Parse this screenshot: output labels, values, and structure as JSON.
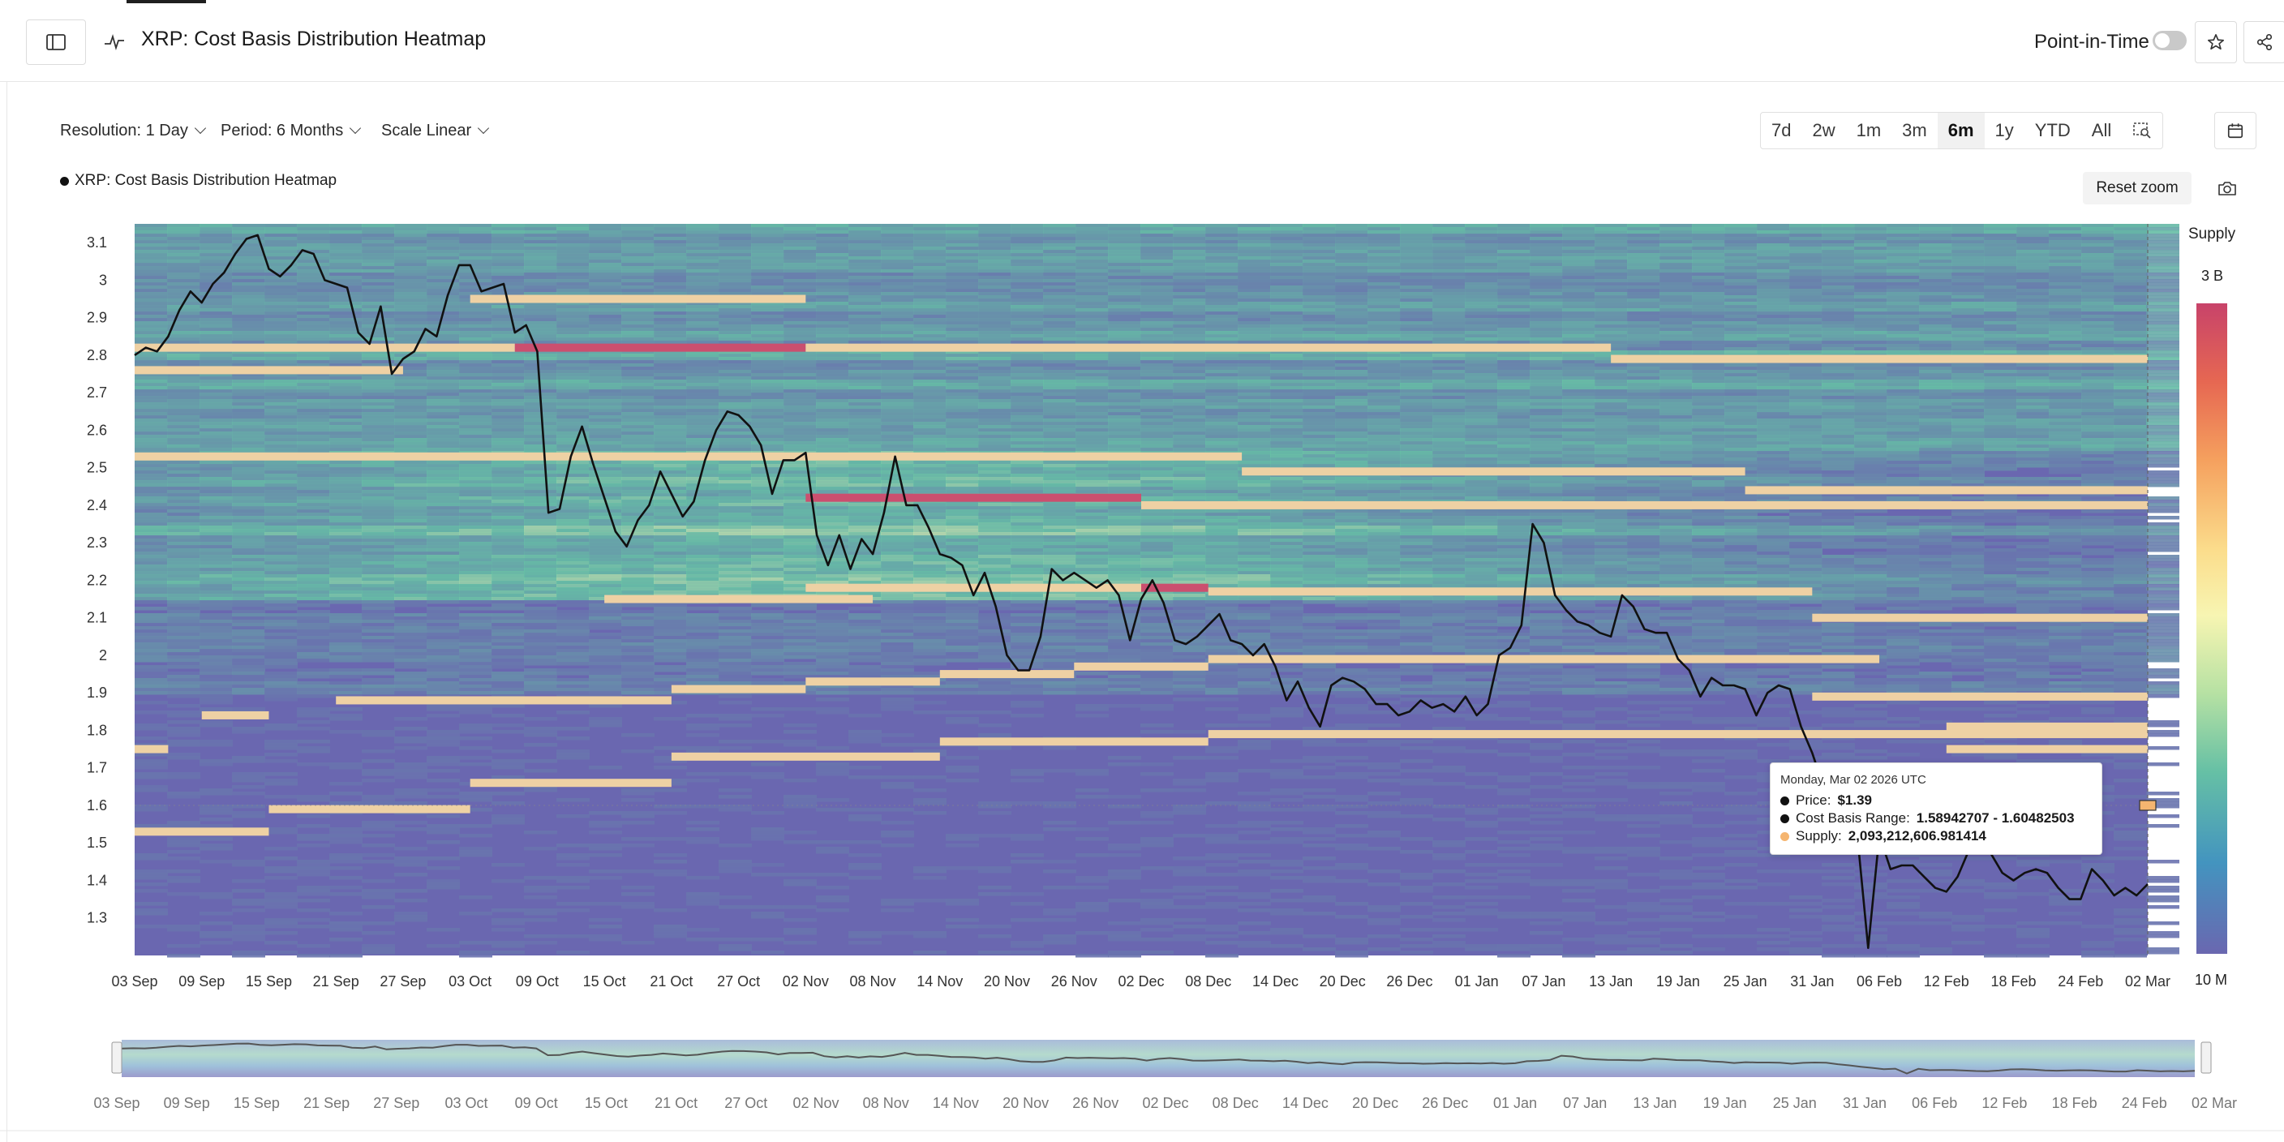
{
  "header": {
    "title": "XRP: Cost Basis Distribution Heatmap",
    "point_in_time_label": "Point-in-Time"
  },
  "controls": {
    "resolution": "Resolution: 1 Day",
    "period": "Period: 6 Months",
    "scale": "Scale Linear",
    "ranges": [
      "7d",
      "2w",
      "1m",
      "3m",
      "6m",
      "1y",
      "YTD",
      "All"
    ],
    "active_range": "6m",
    "reset_zoom": "Reset zoom"
  },
  "legend": {
    "series_name": "XRP: Cost Basis Distribution Heatmap"
  },
  "colorbar": {
    "title": "Supply",
    "max_label": "3 B",
    "min_label": "10 M"
  },
  "tooltip": {
    "date": "Monday, Mar 02 2026 UTC",
    "price_label": "Price:",
    "price_value": "$1.39",
    "range_label": "Cost Basis Range:",
    "range_value": "1.58942707 - 1.60482503",
    "supply_label": "Supply:",
    "supply_value": "2,093,212,606.981414"
  },
  "colors": {
    "heat_low": "#6a67b0",
    "heat_mid": "#66c0a5",
    "heat_high": "#f7f5b2",
    "heat_peak": "#c8436a",
    "price_line": "#111111",
    "supply_dot": "#f5b570"
  },
  "chart_data": {
    "type": "heatmap",
    "title": "XRP: Cost Basis Distribution Heatmap",
    "y_ticks": [
      3.1,
      3,
      2.9,
      2.8,
      2.7,
      2.6,
      2.5,
      2.4,
      2.3,
      2.2,
      2.1,
      2,
      1.9,
      1.8,
      1.7,
      1.6,
      1.5,
      1.4,
      1.3
    ],
    "ylim": [
      1.2,
      3.15
    ],
    "x_start": "2025-09-03",
    "x_end": "2026-03-02",
    "x_tick_labels": [
      "03 Sep",
      "09 Sep",
      "15 Sep",
      "21 Sep",
      "27 Sep",
      "03 Oct",
      "09 Oct",
      "15 Oct",
      "21 Oct",
      "27 Oct",
      "02 Nov",
      "08 Nov",
      "14 Nov",
      "20 Nov",
      "26 Nov",
      "02 Dec",
      "08 Dec",
      "14 Dec",
      "20 Dec",
      "26 Dec",
      "01 Jan",
      "07 Jan",
      "13 Jan",
      "19 Jan",
      "25 Jan",
      "31 Jan",
      "06 Feb",
      "12 Feb",
      "18 Feb",
      "24 Feb",
      "02 Mar"
    ],
    "price_series": [
      [
        "2025-09-03",
        2.8
      ],
      [
        "2025-09-04",
        2.82
      ],
      [
        "2025-09-05",
        2.81
      ],
      [
        "2025-09-06",
        2.85
      ],
      [
        "2025-09-07",
        2.92
      ],
      [
        "2025-09-08",
        2.97
      ],
      [
        "2025-09-09",
        2.94
      ],
      [
        "2025-09-10",
        2.99
      ],
      [
        "2025-09-11",
        3.02
      ],
      [
        "2025-09-12",
        3.07
      ],
      [
        "2025-09-13",
        3.11
      ],
      [
        "2025-09-14",
        3.12
      ],
      [
        "2025-09-15",
        3.03
      ],
      [
        "2025-09-16",
        3.01
      ],
      [
        "2025-09-17",
        3.04
      ],
      [
        "2025-09-18",
        3.08
      ],
      [
        "2025-09-19",
        3.07
      ],
      [
        "2025-09-20",
        3.0
      ],
      [
        "2025-09-21",
        2.99
      ],
      [
        "2025-09-22",
        2.98
      ],
      [
        "2025-09-23",
        2.86
      ],
      [
        "2025-09-24",
        2.83
      ],
      [
        "2025-09-25",
        2.93
      ],
      [
        "2025-09-26",
        2.75
      ],
      [
        "2025-09-27",
        2.79
      ],
      [
        "2025-09-28",
        2.81
      ],
      [
        "2025-09-29",
        2.87
      ],
      [
        "2025-09-30",
        2.85
      ],
      [
        "2025-10-01",
        2.96
      ],
      [
        "2025-10-02",
        3.04
      ],
      [
        "2025-10-03",
        3.04
      ],
      [
        "2025-10-04",
        2.97
      ],
      [
        "2025-10-05",
        2.98
      ],
      [
        "2025-10-06",
        2.99
      ],
      [
        "2025-10-07",
        2.86
      ],
      [
        "2025-10-08",
        2.88
      ],
      [
        "2025-10-09",
        2.81
      ],
      [
        "2025-10-10",
        2.38
      ],
      [
        "2025-10-11",
        2.39
      ],
      [
        "2025-10-12",
        2.53
      ],
      [
        "2025-10-13",
        2.61
      ],
      [
        "2025-10-14",
        2.51
      ],
      [
        "2025-10-15",
        2.42
      ],
      [
        "2025-10-16",
        2.33
      ],
      [
        "2025-10-17",
        2.29
      ],
      [
        "2025-10-18",
        2.36
      ],
      [
        "2025-10-19",
        2.4
      ],
      [
        "2025-10-20",
        2.49
      ],
      [
        "2025-10-21",
        2.43
      ],
      [
        "2025-10-22",
        2.37
      ],
      [
        "2025-10-23",
        2.41
      ],
      [
        "2025-10-24",
        2.52
      ],
      [
        "2025-10-25",
        2.6
      ],
      [
        "2025-10-26",
        2.65
      ],
      [
        "2025-10-27",
        2.64
      ],
      [
        "2025-10-28",
        2.61
      ],
      [
        "2025-10-29",
        2.56
      ],
      [
        "2025-10-30",
        2.43
      ],
      [
        "2025-10-31",
        2.52
      ],
      [
        "2025-11-01",
        2.52
      ],
      [
        "2025-11-02",
        2.54
      ],
      [
        "2025-11-03",
        2.32
      ],
      [
        "2025-11-04",
        2.24
      ],
      [
        "2025-11-05",
        2.32
      ],
      [
        "2025-11-06",
        2.23
      ],
      [
        "2025-11-07",
        2.31
      ],
      [
        "2025-11-08",
        2.27
      ],
      [
        "2025-11-09",
        2.38
      ],
      [
        "2025-11-10",
        2.53
      ],
      [
        "2025-11-11",
        2.4
      ],
      [
        "2025-11-12",
        2.4
      ],
      [
        "2025-11-13",
        2.34
      ],
      [
        "2025-11-14",
        2.27
      ],
      [
        "2025-11-15",
        2.26
      ],
      [
        "2025-11-16",
        2.24
      ],
      [
        "2025-11-17",
        2.16
      ],
      [
        "2025-11-18",
        2.22
      ],
      [
        "2025-11-19",
        2.13
      ],
      [
        "2025-11-20",
        2.0
      ],
      [
        "2025-11-21",
        1.96
      ],
      [
        "2025-11-22",
        1.96
      ],
      [
        "2025-11-23",
        2.05
      ],
      [
        "2025-11-24",
        2.23
      ],
      [
        "2025-11-25",
        2.2
      ],
      [
        "2025-11-26",
        2.22
      ],
      [
        "2025-11-27",
        2.2
      ],
      [
        "2025-11-28",
        2.18
      ],
      [
        "2025-11-29",
        2.2
      ],
      [
        "2025-11-30",
        2.16
      ],
      [
        "2025-12-01",
        2.04
      ],
      [
        "2025-12-02",
        2.15
      ],
      [
        "2025-12-03",
        2.2
      ],
      [
        "2025-12-04",
        2.14
      ],
      [
        "2025-12-05",
        2.04
      ],
      [
        "2025-12-06",
        2.03
      ],
      [
        "2025-12-07",
        2.05
      ],
      [
        "2025-12-08",
        2.08
      ],
      [
        "2025-12-09",
        2.11
      ],
      [
        "2025-12-10",
        2.04
      ],
      [
        "2025-12-11",
        2.03
      ],
      [
        "2025-12-12",
        2.0
      ],
      [
        "2025-12-13",
        2.03
      ],
      [
        "2025-12-14",
        1.97
      ],
      [
        "2025-12-15",
        1.88
      ],
      [
        "2025-12-16",
        1.93
      ],
      [
        "2025-12-17",
        1.86
      ],
      [
        "2025-12-18",
        1.81
      ],
      [
        "2025-12-19",
        1.92
      ],
      [
        "2025-12-20",
        1.94
      ],
      [
        "2025-12-21",
        1.93
      ],
      [
        "2025-12-22",
        1.91
      ],
      [
        "2025-12-23",
        1.87
      ],
      [
        "2025-12-24",
        1.87
      ],
      [
        "2025-12-25",
        1.84
      ],
      [
        "2025-12-26",
        1.85
      ],
      [
        "2025-12-27",
        1.88
      ],
      [
        "2025-12-28",
        1.86
      ],
      [
        "2025-12-29",
        1.87
      ],
      [
        "2025-12-30",
        1.85
      ],
      [
        "2025-12-31",
        1.89
      ],
      [
        "2026-01-01",
        1.84
      ],
      [
        "2026-01-02",
        1.87
      ],
      [
        "2026-01-03",
        2.0
      ],
      [
        "2026-01-04",
        2.02
      ],
      [
        "2026-01-05",
        2.08
      ],
      [
        "2026-01-06",
        2.35
      ],
      [
        "2026-01-07",
        2.3
      ],
      [
        "2026-01-08",
        2.16
      ],
      [
        "2026-01-09",
        2.12
      ],
      [
        "2026-01-10",
        2.09
      ],
      [
        "2026-01-11",
        2.08
      ],
      [
        "2026-01-12",
        2.06
      ],
      [
        "2026-01-13",
        2.05
      ],
      [
        "2026-01-14",
        2.16
      ],
      [
        "2026-01-15",
        2.13
      ],
      [
        "2026-01-16",
        2.07
      ],
      [
        "2026-01-17",
        2.06
      ],
      [
        "2026-01-18",
        2.06
      ],
      [
        "2026-01-19",
        1.99
      ],
      [
        "2026-01-20",
        1.96
      ],
      [
        "2026-01-21",
        1.89
      ],
      [
        "2026-01-22",
        1.94
      ],
      [
        "2026-01-23",
        1.92
      ],
      [
        "2026-01-24",
        1.92
      ],
      [
        "2026-01-25",
        1.91
      ],
      [
        "2026-01-26",
        1.84
      ],
      [
        "2026-01-27",
        1.9
      ],
      [
        "2026-01-28",
        1.92
      ],
      [
        "2026-01-29",
        1.91
      ],
      [
        "2026-01-30",
        1.81
      ],
      [
        "2026-01-31",
        1.74
      ],
      [
        "2026-02-01",
        1.65
      ],
      [
        "2026-02-02",
        1.58
      ],
      [
        "2026-02-03",
        1.5
      ],
      [
        "2026-02-04",
        1.53
      ],
      [
        "2026-02-05",
        1.22
      ],
      [
        "2026-02-06",
        1.52
      ],
      [
        "2026-02-07",
        1.43
      ],
      [
        "2026-02-08",
        1.44
      ],
      [
        "2026-02-09",
        1.44
      ],
      [
        "2026-02-10",
        1.41
      ],
      [
        "2026-02-11",
        1.38
      ],
      [
        "2026-02-12",
        1.37
      ],
      [
        "2026-02-13",
        1.41
      ],
      [
        "2026-02-14",
        1.48
      ],
      [
        "2026-02-15",
        1.5
      ],
      [
        "2026-02-16",
        1.47
      ],
      [
        "2026-02-17",
        1.42
      ],
      [
        "2026-02-18",
        1.4
      ],
      [
        "2026-02-19",
        1.42
      ],
      [
        "2026-02-20",
        1.43
      ],
      [
        "2026-02-21",
        1.42
      ],
      [
        "2026-02-22",
        1.38
      ],
      [
        "2026-02-23",
        1.35
      ],
      [
        "2026-02-24",
        1.35
      ],
      [
        "2026-02-25",
        1.43
      ],
      [
        "2026-02-26",
        1.4
      ],
      [
        "2026-02-27",
        1.36
      ],
      [
        "2026-02-28",
        1.38
      ],
      [
        "2026-03-01",
        1.36
      ],
      [
        "2026-03-02",
        1.39
      ]
    ],
    "supply_bands": [
      {
        "start": "2025-09-03",
        "end": "2025-10-07",
        "y": 2.82,
        "level": "high"
      },
      {
        "start": "2025-10-07",
        "end": "2025-11-02",
        "y": 2.82,
        "level": "peak"
      },
      {
        "start": "2025-11-02",
        "end": "2026-01-13",
        "y": 2.82,
        "level": "high"
      },
      {
        "start": "2026-01-13",
        "end": "2026-03-02",
        "y": 2.79,
        "level": "high"
      },
      {
        "start": "2025-09-03",
        "end": "2025-09-27",
        "y": 2.76,
        "level": "high"
      },
      {
        "start": "2025-10-03",
        "end": "2025-11-02",
        "y": 2.95,
        "level": "high"
      },
      {
        "start": "2025-09-03",
        "end": "2025-12-11",
        "y": 2.53,
        "level": "high"
      },
      {
        "start": "2025-12-11",
        "end": "2026-01-25",
        "y": 2.49,
        "level": "high"
      },
      {
        "start": "2026-01-25",
        "end": "2026-03-02",
        "y": 2.44,
        "level": "high"
      },
      {
        "start": "2025-11-02",
        "end": "2025-12-02",
        "y": 2.42,
        "level": "peak"
      },
      {
        "start": "2025-12-02",
        "end": "2026-03-02",
        "y": 2.4,
        "level": "high"
      },
      {
        "start": "2025-11-02",
        "end": "2025-12-02",
        "y": 2.18,
        "level": "high"
      },
      {
        "start": "2025-12-02",
        "end": "2025-12-08",
        "y": 2.18,
        "level": "peak"
      },
      {
        "start": "2025-12-08",
        "end": "2026-01-31",
        "y": 2.17,
        "level": "high"
      },
      {
        "start": "2025-10-15",
        "end": "2025-11-08",
        "y": 2.15,
        "level": "high"
      },
      {
        "start": "2026-01-31",
        "end": "2026-03-02",
        "y": 2.1,
        "level": "high"
      },
      {
        "start": "2025-12-08",
        "end": "2026-02-06",
        "y": 1.99,
        "level": "high"
      },
      {
        "start": "2025-11-26",
        "end": "2025-12-08",
        "y": 1.97,
        "level": "high"
      },
      {
        "start": "2025-11-14",
        "end": "2025-11-26",
        "y": 1.95,
        "level": "high"
      },
      {
        "start": "2025-11-02",
        "end": "2025-11-14",
        "y": 1.93,
        "level": "high"
      },
      {
        "start": "2025-10-21",
        "end": "2025-11-02",
        "y": 1.91,
        "level": "high"
      },
      {
        "start": "2025-09-21",
        "end": "2025-10-21",
        "y": 1.88,
        "level": "high"
      },
      {
        "start": "2026-01-31",
        "end": "2026-03-02",
        "y": 1.89,
        "level": "high"
      },
      {
        "start": "2025-12-08",
        "end": "2026-03-02",
        "y": 1.79,
        "level": "high"
      },
      {
        "start": "2025-11-14",
        "end": "2025-12-08",
        "y": 1.77,
        "level": "high"
      },
      {
        "start": "2025-10-21",
        "end": "2025-11-14",
        "y": 1.73,
        "level": "high"
      },
      {
        "start": "2025-10-03",
        "end": "2025-10-21",
        "y": 1.66,
        "level": "high"
      },
      {
        "start": "2025-09-15",
        "end": "2025-10-03",
        "y": 1.59,
        "level": "high"
      },
      {
        "start": "2025-09-03",
        "end": "2025-09-15",
        "y": 1.53,
        "level": "high"
      },
      {
        "start": "2025-09-03",
        "end": "2025-09-06",
        "y": 1.75,
        "level": "high"
      },
      {
        "start": "2025-09-09",
        "end": "2025-09-15",
        "y": 1.84,
        "level": "high"
      },
      {
        "start": "2026-02-12",
        "end": "2026-03-02",
        "y": 1.81,
        "level": "high"
      },
      {
        "start": "2026-02-12",
        "end": "2026-03-02",
        "y": 1.75,
        "level": "high"
      }
    ]
  }
}
